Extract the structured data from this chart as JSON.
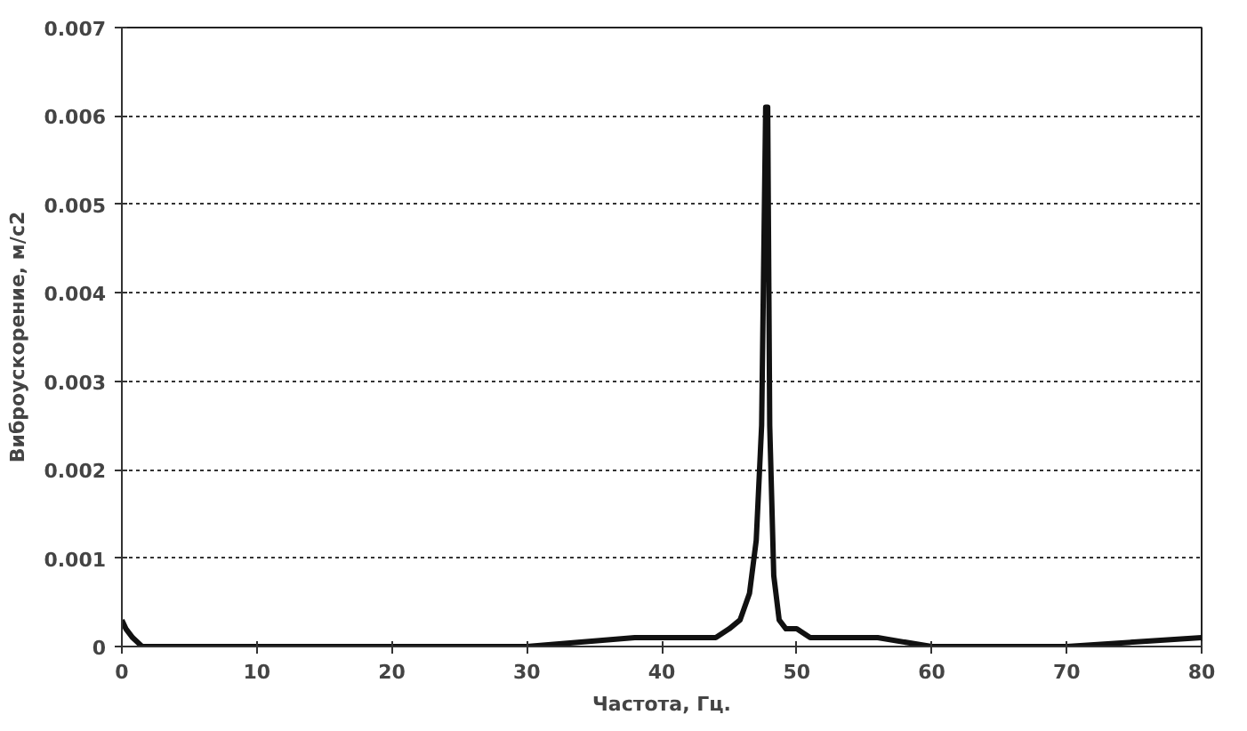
{
  "chart_data": {
    "type": "line",
    "xlabel": "Частота, Гц.",
    "ylabel": "Виброускорение, м/с2",
    "xlim": [
      0,
      80
    ],
    "xticks": [
      0,
      10,
      20,
      30,
      40,
      50,
      60,
      70,
      80
    ],
    "ylim": [
      0,
      0.007
    ],
    "yticks": [
      0,
      0.001,
      0.002,
      0.003,
      0.004,
      0.005,
      0.006,
      0.007
    ],
    "grid": "y",
    "line_style": "solid",
    "marker": "none",
    "series": [
      {
        "color": "#111111",
        "x": [
          0,
          0.3,
          0.8,
          1.5,
          5,
          10,
          20,
          30,
          38,
          41,
          43,
          44,
          45,
          45.8,
          46.5,
          47.0,
          47.4,
          47.7,
          47.85,
          48.0,
          48.3,
          48.7,
          49.2,
          50,
          51,
          53,
          56,
          60,
          70,
          80
        ],
        "values": [
          0.0003,
          0.0002,
          0.0001,
          0.0,
          0.0,
          0.0,
          0.0,
          0.0,
          0.0001,
          0.0001,
          0.0001,
          0.0001,
          0.0002,
          0.0003,
          0.0006,
          0.0012,
          0.0025,
          0.0061,
          0.0061,
          0.0025,
          0.0008,
          0.0003,
          0.0002,
          0.0002,
          0.0001,
          0.0001,
          0.0001,
          0.0,
          0.0,
          0.0001
        ]
      }
    ]
  }
}
